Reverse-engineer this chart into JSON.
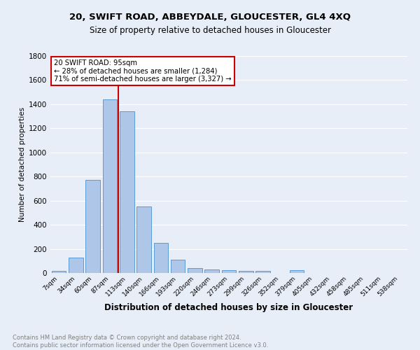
{
  "title1": "20, SWIFT ROAD, ABBEYDALE, GLOUCESTER, GL4 4XQ",
  "title2": "Size of property relative to detached houses in Gloucester",
  "xlabel": "Distribution of detached houses by size in Gloucester",
  "ylabel": "Number of detached properties",
  "footnote": "Contains HM Land Registry data © Crown copyright and database right 2024.\nContains public sector information licensed under the Open Government Licence v3.0.",
  "bin_labels": [
    "7sqm",
    "34sqm",
    "60sqm",
    "87sqm",
    "113sqm",
    "140sqm",
    "166sqm",
    "193sqm",
    "220sqm",
    "246sqm",
    "273sqm",
    "299sqm",
    "326sqm",
    "352sqm",
    "379sqm",
    "405sqm",
    "432sqm",
    "458sqm",
    "485sqm",
    "511sqm",
    "538sqm"
  ],
  "bar_values": [
    15,
    130,
    775,
    1440,
    1340,
    550,
    248,
    110,
    38,
    28,
    22,
    15,
    18,
    0,
    22,
    0,
    0,
    0,
    0,
    0,
    0
  ],
  "bar_color": "#aec6e8",
  "bar_edge_color": "#5b9bd5",
  "bg_color": "#e8eef8",
  "grid_color": "#ffffff",
  "property_label": "20 SWIFT ROAD: 95sqm",
  "annotation_line1": "← 28% of detached houses are smaller (1,284)",
  "annotation_line2": "71% of semi-detached houses are larger (3,327) →",
  "red_line_color": "#cc0000",
  "annotation_box_color": "#ffffff",
  "annotation_border_color": "#cc0000",
  "ylim": [
    0,
    1800
  ],
  "yticks": [
    0,
    200,
    400,
    600,
    800,
    1000,
    1200,
    1400,
    1600,
    1800
  ]
}
